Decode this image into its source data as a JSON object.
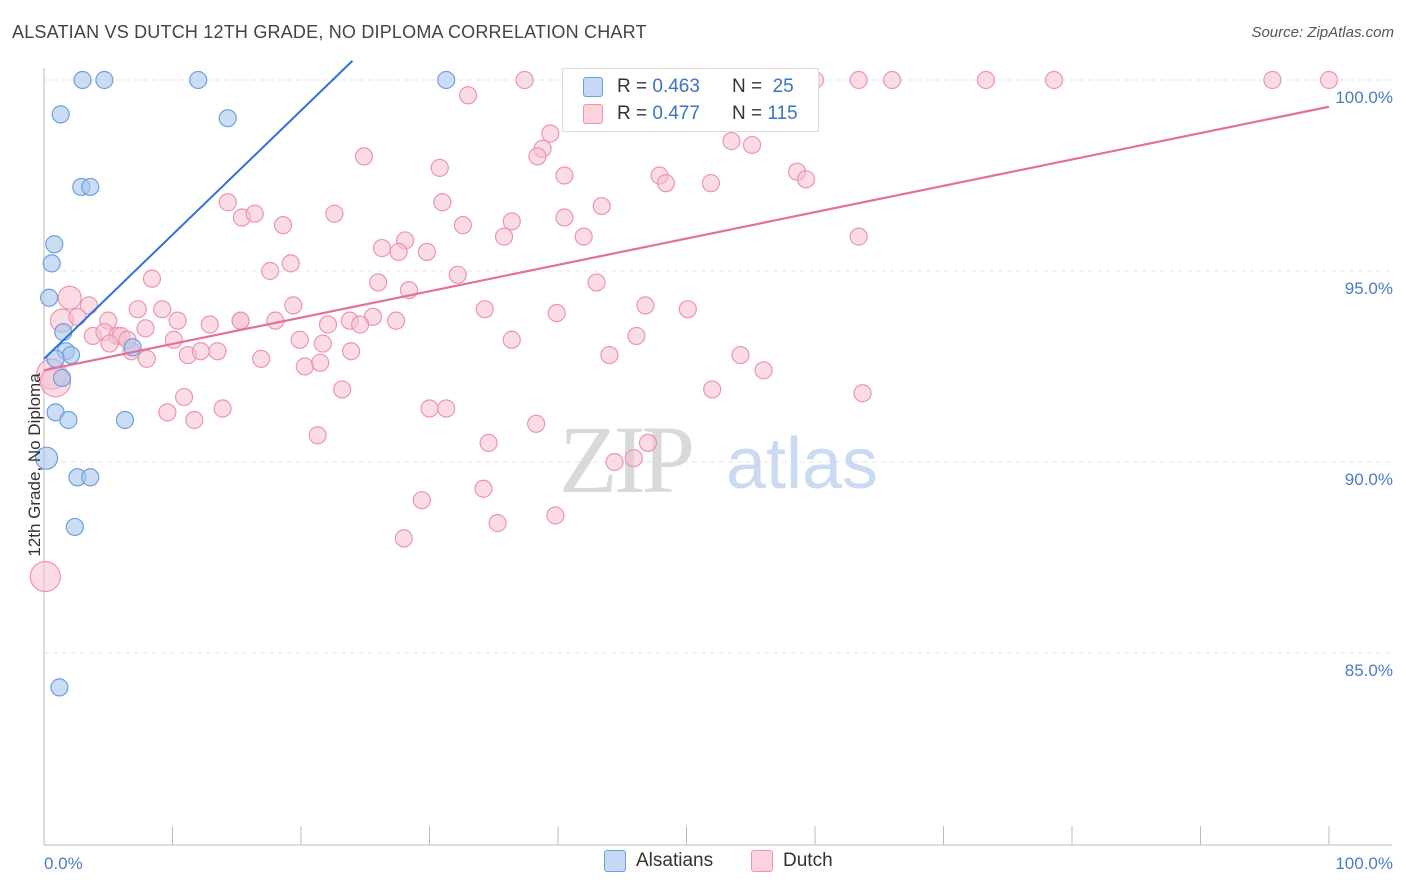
{
  "header": {
    "title": "ALSATIAN VS DUTCH 12TH GRADE, NO DIPLOMA CORRELATION CHART",
    "source": "Source: ZipAtlas.com"
  },
  "legend": {
    "rows": [
      {
        "r_label": "R =",
        "r_value": "0.463",
        "n_label": "N =",
        "n_value": "25"
      },
      {
        "r_label": "R =",
        "r_value": "0.477",
        "n_label": "N =",
        "n_value": "115"
      }
    ],
    "bottom": [
      "Alsatians",
      "Dutch"
    ]
  },
  "watermark": {
    "zip": "ZIP",
    "atlas": "atlas"
  },
  "colors": {
    "alsatian_fill": "#a8c6ee",
    "alsatian_stroke": "#6f9fdc",
    "alsatian_line": "#2f72d6",
    "dutch_fill": "#f7bfd0",
    "dutch_stroke": "#ec95b0",
    "dutch_line": "#e3709a",
    "tick_text": "#4a7cc7",
    "grid": "#e6e6e6"
  },
  "chart_data": {
    "type": "scatter",
    "title": "ALSATIAN VS DUTCH 12TH GRADE, NO DIPLOMA CORRELATION CHART",
    "xlabel": "",
    "ylabel": "12th Grade, No Diploma",
    "xlim": [
      0,
      100
    ],
    "ylim": [
      80.5,
      100.5
    ],
    "x_tick_labels": [
      "0.0%",
      "100.0%"
    ],
    "y_ticks": [
      85,
      90,
      95,
      100
    ],
    "y_tick_labels": [
      "85.0%",
      "90.0%",
      "95.0%",
      "100.0%"
    ],
    "grid": true,
    "legend_position": "top-center",
    "series": [
      {
        "name": "Alsatians",
        "r": 0.463,
        "n": 25,
        "trend": {
          "x": [
            0,
            24
          ],
          "y": [
            92.7,
            100.5
          ]
        },
        "points": [
          [
            3.0,
            100
          ],
          [
            4.7,
            100
          ],
          [
            12.0,
            100
          ],
          [
            31.3,
            100
          ],
          [
            1.3,
            99.1
          ],
          [
            14.3,
            99.0
          ],
          [
            2.9,
            97.2
          ],
          [
            3.6,
            97.2
          ],
          [
            0.8,
            95.7
          ],
          [
            0.6,
            95.2
          ],
          [
            0.4,
            94.3
          ],
          [
            1.5,
            93.4
          ],
          [
            1.7,
            92.9
          ],
          [
            2.1,
            92.8
          ],
          [
            0.9,
            92.7
          ],
          [
            1.4,
            92.2
          ],
          [
            0.9,
            91.3
          ],
          [
            1.9,
            91.1
          ],
          [
            6.3,
            91.1
          ],
          [
            0.2,
            90.1
          ],
          [
            2.6,
            89.6
          ],
          [
            3.6,
            89.6
          ],
          [
            2.4,
            88.3
          ],
          [
            1.2,
            84.1
          ],
          [
            6.9,
            93.0
          ]
        ]
      },
      {
        "name": "Dutch",
        "r": 0.477,
        "n": 115,
        "trend": {
          "x": [
            0,
            100
          ],
          "y": [
            92.4,
            99.3
          ]
        },
        "points": [
          [
            37.4,
            100
          ],
          [
            52.6,
            100
          ],
          [
            60.0,
            100
          ],
          [
            63.4,
            100
          ],
          [
            66.0,
            100
          ],
          [
            73.3,
            100
          ],
          [
            78.6,
            100
          ],
          [
            95.6,
            100
          ],
          [
            100,
            100
          ],
          [
            33.0,
            99.6
          ],
          [
            52.7,
            99.0
          ],
          [
            39.4,
            98.6
          ],
          [
            38.8,
            98.2
          ],
          [
            53.5,
            98.4
          ],
          [
            55.1,
            98.3
          ],
          [
            38.4,
            98.0
          ],
          [
            24.9,
            98.0
          ],
          [
            30.8,
            97.7
          ],
          [
            40.5,
            97.5
          ],
          [
            47.9,
            97.5
          ],
          [
            48.4,
            97.3
          ],
          [
            51.9,
            97.3
          ],
          [
            58.6,
            97.6
          ],
          [
            59.3,
            97.4
          ],
          [
            14.3,
            96.8
          ],
          [
            31.0,
            96.8
          ],
          [
            43.4,
            96.7
          ],
          [
            15.4,
            96.4
          ],
          [
            16.4,
            96.5
          ],
          [
            22.6,
            96.5
          ],
          [
            18.6,
            96.2
          ],
          [
            32.6,
            96.2
          ],
          [
            36.4,
            96.3
          ],
          [
            40.5,
            96.4
          ],
          [
            35.8,
            95.9
          ],
          [
            42.0,
            95.9
          ],
          [
            28.1,
            95.8
          ],
          [
            27.6,
            95.5
          ],
          [
            29.8,
            95.5
          ],
          [
            26.3,
            95.6
          ],
          [
            63.4,
            95.9
          ],
          [
            32.2,
            94.9
          ],
          [
            17.6,
            95.0
          ],
          [
            19.2,
            95.2
          ],
          [
            8.4,
            94.8
          ],
          [
            26.0,
            94.7
          ],
          [
            28.4,
            94.5
          ],
          [
            43.0,
            94.7
          ],
          [
            2.0,
            94.3
          ],
          [
            3.5,
            94.1
          ],
          [
            7.3,
            94.0
          ],
          [
            9.2,
            94.0
          ],
          [
            19.4,
            94.1
          ],
          [
            34.3,
            94.0
          ],
          [
            46.8,
            94.1
          ],
          [
            50.1,
            94.0
          ],
          [
            1.4,
            93.7
          ],
          [
            2.6,
            93.8
          ],
          [
            5.0,
            93.7
          ],
          [
            10.4,
            93.7
          ],
          [
            12.9,
            93.6
          ],
          [
            15.3,
            93.7
          ],
          [
            15.3,
            93.7
          ],
          [
            18.0,
            93.7
          ],
          [
            22.1,
            93.6
          ],
          [
            23.8,
            93.7
          ],
          [
            25.6,
            93.8
          ],
          [
            27.4,
            93.7
          ],
          [
            3.8,
            93.3
          ],
          [
            4.7,
            93.4
          ],
          [
            5.7,
            93.3
          ],
          [
            6.0,
            93.3
          ],
          [
            10.1,
            93.2
          ],
          [
            19.9,
            93.2
          ],
          [
            21.7,
            93.1
          ],
          [
            36.4,
            93.2
          ],
          [
            46.1,
            93.3
          ],
          [
            5.1,
            93.1
          ],
          [
            6.8,
            92.9
          ],
          [
            8.0,
            92.7
          ],
          [
            11.2,
            92.8
          ],
          [
            13.5,
            92.9
          ],
          [
            16.9,
            92.7
          ],
          [
            20.3,
            92.5
          ],
          [
            23.9,
            92.9
          ],
          [
            44.0,
            92.8
          ],
          [
            54.2,
            92.8
          ],
          [
            56.0,
            92.4
          ],
          [
            21.5,
            92.6
          ],
          [
            0.6,
            92.3
          ],
          [
            0.9,
            92.1
          ],
          [
            23.2,
            91.9
          ],
          [
            52.0,
            91.9
          ],
          [
            63.7,
            91.8
          ],
          [
            10.9,
            91.7
          ],
          [
            9.6,
            91.3
          ],
          [
            13.9,
            91.4
          ],
          [
            30.0,
            91.4
          ],
          [
            31.3,
            91.4
          ],
          [
            11.7,
            91.1
          ],
          [
            38.3,
            91.0
          ],
          [
            21.3,
            90.7
          ],
          [
            34.6,
            90.5
          ],
          [
            47.0,
            90.5
          ],
          [
            45.9,
            90.1
          ],
          [
            44.4,
            90.0
          ],
          [
            34.2,
            89.3
          ],
          [
            29.4,
            89.0
          ],
          [
            39.8,
            88.6
          ],
          [
            35.3,
            88.4
          ],
          [
            28.0,
            88.0
          ],
          [
            0.1,
            87.0
          ],
          [
            6.5,
            93.2
          ],
          [
            12.2,
            92.9
          ],
          [
            24.6,
            93.6
          ],
          [
            39.9,
            93.9
          ],
          [
            7.9,
            93.5
          ]
        ]
      }
    ]
  }
}
